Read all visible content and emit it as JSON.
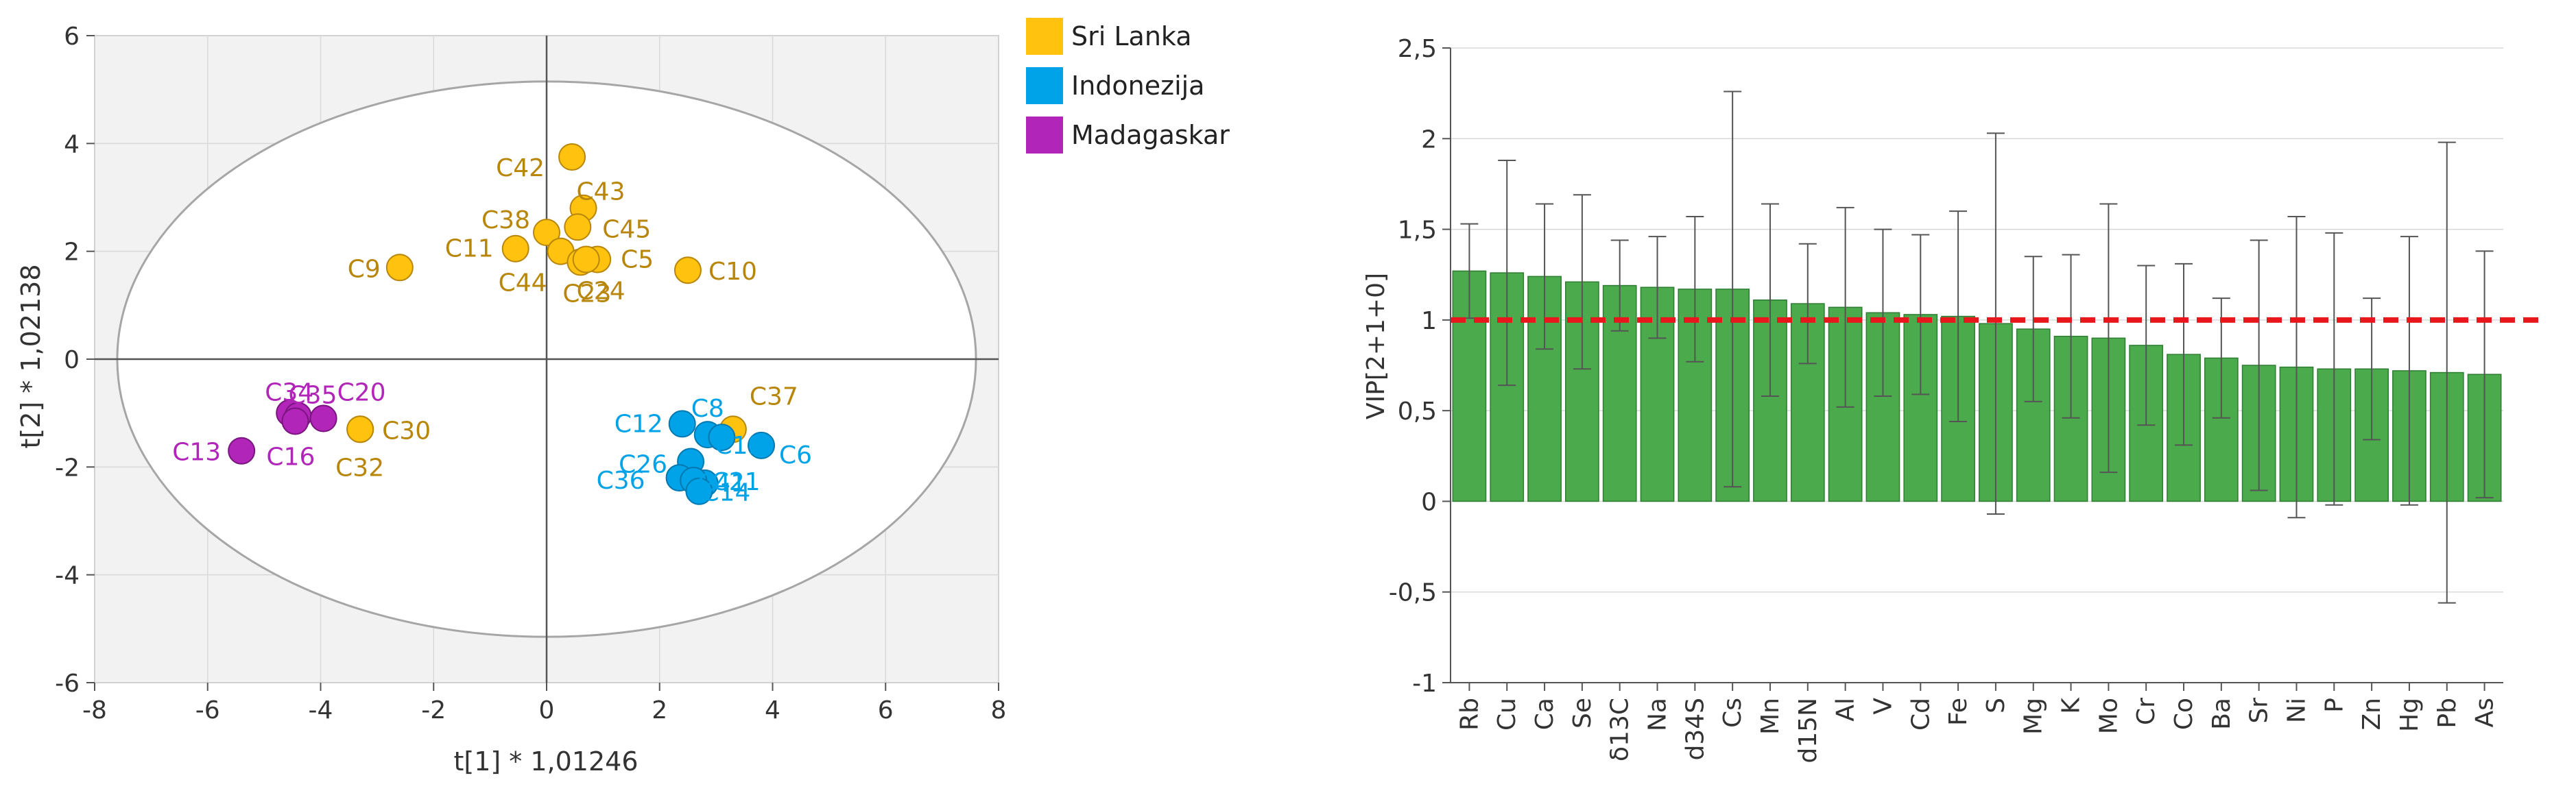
{
  "colors": {
    "sri_lanka": "#FFC20E",
    "sri_lanka_text": "#B8860B",
    "indonezija": "#00A2E8",
    "madagaskar": "#B125B8",
    "bar_fill": "#4BAA4B",
    "bar_stroke": "#2E7D32",
    "threshold": "#E8161D",
    "grid": "#D9D9D9",
    "plot_bg": "#F2F2F2",
    "ellipse": "#A6A6A6"
  },
  "chart_data": [
    {
      "type": "scatter",
      "xlabel": "t[1] * 1,01246",
      "ylabel": "t[2] * 1,02138",
      "xlim": [
        -8,
        8
      ],
      "ylim": [
        -6,
        6
      ],
      "x_ticks": [
        "-8",
        "-6",
        "-4",
        "-2",
        "0",
        "2",
        "4",
        "6",
        "8"
      ],
      "y_ticks": [
        "6",
        "4",
        "2",
        "0",
        "-2",
        "-4",
        "-6"
      ],
      "ellipse": {
        "rx": 7.6,
        "ry": 5.15
      },
      "legend_position": "right",
      "legend": [
        "Sri Lanka",
        "Indonezija",
        "Madagaskar"
      ],
      "series": [
        {
          "name": "Sri Lanka",
          "points": [
            {
              "label": "C42",
              "x": 0.45,
              "y": 3.75
            },
            {
              "label": "C43",
              "x": 0.65,
              "y": 2.8
            },
            {
              "label": "C45",
              "x": 0.55,
              "y": 2.45
            },
            {
              "label": "C38",
              "x": 0.0,
              "y": 2.35
            },
            {
              "label": "C11",
              "x": -0.55,
              "y": 2.05
            },
            {
              "label": "C5",
              "x": 0.9,
              "y": 1.85
            },
            {
              "label": "C44",
              "x": 0.25,
              "y": 2.0
            },
            {
              "label": "C23",
              "x": 0.6,
              "y": 1.8
            },
            {
              "label": "C24",
              "x": 0.7,
              "y": 1.85
            },
            {
              "label": "C9",
              "x": -2.6,
              "y": 1.7
            },
            {
              "label": "C10",
              "x": 2.5,
              "y": 1.65
            },
            {
              "label": "C37",
              "x": 3.3,
              "y": -1.3
            },
            {
              "label": "C30",
              "x": -3.3,
              "y": -1.3
            },
            {
              "label": "C32",
              "x": -3.3,
              "y": -1.3
            }
          ]
        },
        {
          "name": "Indonezija",
          "points": [
            {
              "label": "C8",
              "x": 2.85,
              "y": -1.4
            },
            {
              "label": "C12",
              "x": 2.4,
              "y": -1.2
            },
            {
              "label": "C19",
              "x": 3.1,
              "y": -1.45
            },
            {
              "label": "C6",
              "x": 3.8,
              "y": -1.6
            },
            {
              "label": "C26",
              "x": 2.55,
              "y": -1.9
            },
            {
              "label": "C36",
              "x": 2.35,
              "y": -2.2
            },
            {
              "label": "C21",
              "x": 2.8,
              "y": -2.3
            },
            {
              "label": "C41",
              "x": 2.6,
              "y": -2.25
            },
            {
              "label": "C14",
              "x": 2.7,
              "y": -2.45
            }
          ]
        },
        {
          "name": "Madagaskar",
          "points": [
            {
              "label": "C34",
              "x": -4.55,
              "y": -1.0
            },
            {
              "label": "C35",
              "x": -4.4,
              "y": -1.05
            },
            {
              "label": "C20",
              "x": -3.95,
              "y": -1.1
            },
            {
              "label": "C16",
              "x": -4.45,
              "y": -1.15
            },
            {
              "label": "C13",
              "x": -5.4,
              "y": -1.7
            }
          ]
        }
      ]
    },
    {
      "type": "bar",
      "ylabel": "VIP[2+1+0]",
      "ylim": [
        -1,
        2.5
      ],
      "y_ticks": [
        "2,5",
        "2",
        "1,5",
        "1",
        "0,5",
        "0",
        "-0,5",
        "-1"
      ],
      "threshold": 1,
      "categories": [
        "Rb",
        "Cu",
        "Ca",
        "Se",
        "δ13C",
        "Na",
        "d34S",
        "Cs",
        "Mn",
        "d15N",
        "Al",
        "V",
        "Cd",
        "Fe",
        "S",
        "Mg",
        "K",
        "Mo",
        "Cr",
        "Co",
        "Ba",
        "Sr",
        "Ni",
        "P",
        "Zn",
        "Hg",
        "Pb",
        "As"
      ],
      "values": [
        1.27,
        1.26,
        1.24,
        1.21,
        1.19,
        1.18,
        1.17,
        1.17,
        1.11,
        1.09,
        1.07,
        1.04,
        1.03,
        1.02,
        0.98,
        0.95,
        0.91,
        0.9,
        0.86,
        0.81,
        0.79,
        0.75,
        0.74,
        0.73,
        0.73,
        0.72,
        0.71,
        0.7
      ],
      "errors": [
        0.26,
        0.62,
        0.4,
        0.48,
        0.25,
        0.28,
        0.4,
        1.09,
        0.53,
        0.33,
        0.55,
        0.46,
        0.44,
        0.58,
        1.05,
        0.4,
        0.45,
        0.74,
        0.44,
        0.5,
        0.33,
        0.69,
        0.83,
        0.75,
        0.39,
        0.74,
        1.27,
        0.68
      ]
    }
  ]
}
